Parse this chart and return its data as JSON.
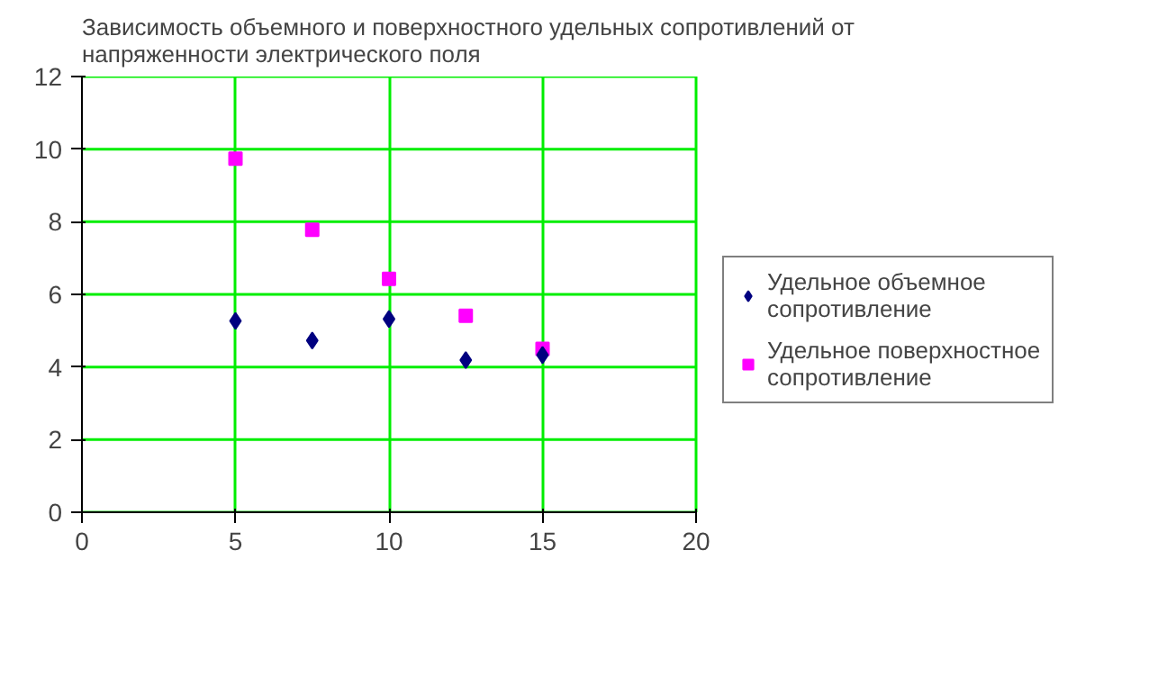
{
  "chart_data": {
    "type": "scatter",
    "title": "Зависимость объемного и поверхностного удельных сопротивлений от\nнапряженности электрического поля",
    "xlim": [
      0,
      20
    ],
    "xticks": [
      0,
      5,
      10,
      15,
      20
    ],
    "ylim": [
      0,
      12
    ],
    "yticks": [
      0,
      2,
      4,
      6,
      8,
      10,
      12
    ],
    "grid": true,
    "legend": "right",
    "series": [
      {
        "name": "Удельное объемное\nсопротивление",
        "color": "#000080",
        "marker": "diamond",
        "x": [
          5,
          7.5,
          10,
          12.5,
          15
        ],
        "values": [
          5.27,
          4.73,
          5.32,
          4.19,
          4.33
        ]
      },
      {
        "name": "Удельное поверхностное\nсопротивление",
        "color": "#ff00ff",
        "marker": "square",
        "x": [
          5,
          7.5,
          10,
          12.5,
          15
        ],
        "values": [
          9.74,
          7.78,
          6.43,
          5.41,
          4.5
        ]
      }
    ]
  }
}
